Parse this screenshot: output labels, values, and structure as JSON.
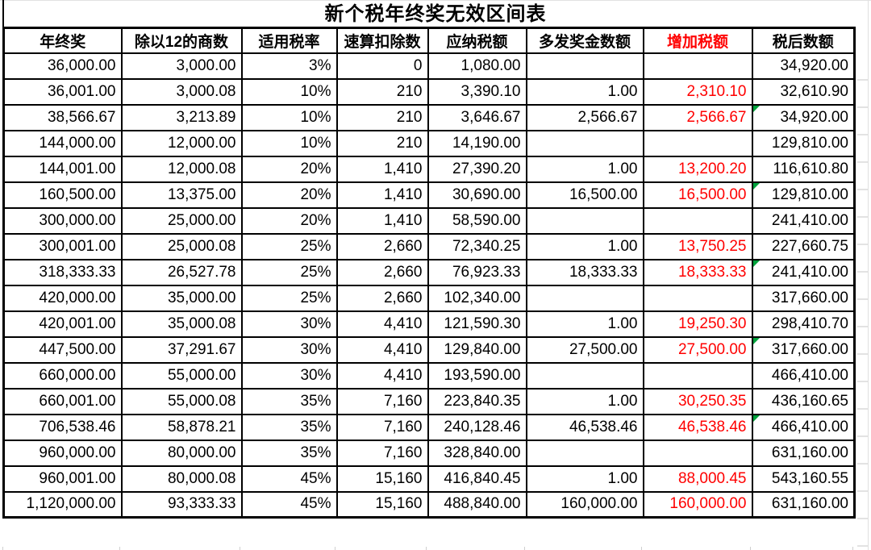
{
  "title": "新个税年终奖无效区间表",
  "colors": {
    "added_tax_red": "#FF0000",
    "comment_marker_green": "#00A33C",
    "table_border_black": "#000000"
  },
  "table": {
    "columns": [
      {
        "key": "bonus",
        "label": "年终奖"
      },
      {
        "key": "quotient",
        "label": "除以12的商数"
      },
      {
        "key": "rate",
        "label": "适用税率"
      },
      {
        "key": "deduction",
        "label": "速算扣除数"
      },
      {
        "key": "tax",
        "label": "应纳税额"
      },
      {
        "key": "extra",
        "label": "多发奖金数额"
      },
      {
        "key": "added",
        "label": "增加税额"
      },
      {
        "key": "after",
        "label": "税后数额"
      }
    ],
    "rows": [
      {
        "bonus": "36,000.00",
        "quotient": "3,000.00",
        "rate": "3%",
        "deduction": "0",
        "tax": "1,080.00",
        "extra": "",
        "added": "",
        "after": "34,920.00",
        "marker": false
      },
      {
        "bonus": "36,001.00",
        "quotient": "3,000.08",
        "rate": "10%",
        "deduction": "210",
        "tax": "3,390.10",
        "extra": "1.00",
        "added": "2,310.10",
        "after": "32,610.90",
        "marker": false
      },
      {
        "bonus": "38,566.67",
        "quotient": "3,213.89",
        "rate": "10%",
        "deduction": "210",
        "tax": "3,646.67",
        "extra": "2,566.67",
        "added": "2,566.67",
        "after": "34,920.00",
        "marker": true
      },
      {
        "bonus": "144,000.00",
        "quotient": "12,000.00",
        "rate": "10%",
        "deduction": "210",
        "tax": "14,190.00",
        "extra": "",
        "added": "",
        "after": "129,810.00",
        "marker": false
      },
      {
        "bonus": "144,001.00",
        "quotient": "12,000.08",
        "rate": "20%",
        "deduction": "1,410",
        "tax": "27,390.20",
        "extra": "1.00",
        "added": "13,200.20",
        "after": "116,610.80",
        "marker": false
      },
      {
        "bonus": "160,500.00",
        "quotient": "13,375.00",
        "rate": "20%",
        "deduction": "1,410",
        "tax": "30,690.00",
        "extra": "16,500.00",
        "added": "16,500.00",
        "after": "129,810.00",
        "marker": true
      },
      {
        "bonus": "300,000.00",
        "quotient": "25,000.00",
        "rate": "20%",
        "deduction": "1,410",
        "tax": "58,590.00",
        "extra": "",
        "added": "",
        "after": "241,410.00",
        "marker": false
      },
      {
        "bonus": "300,001.00",
        "quotient": "25,000.08",
        "rate": "25%",
        "deduction": "2,660",
        "tax": "72,340.25",
        "extra": "1.00",
        "added": "13,750.25",
        "after": "227,660.75",
        "marker": false
      },
      {
        "bonus": "318,333.33",
        "quotient": "26,527.78",
        "rate": "25%",
        "deduction": "2,660",
        "tax": "76,923.33",
        "extra": "18,333.33",
        "added": "18,333.33",
        "after": "241,410.00",
        "marker": true
      },
      {
        "bonus": "420,000.00",
        "quotient": "35,000.00",
        "rate": "25%",
        "deduction": "2,660",
        "tax": "102,340.00",
        "extra": "",
        "added": "",
        "after": "317,660.00",
        "marker": false
      },
      {
        "bonus": "420,001.00",
        "quotient": "35,000.08",
        "rate": "30%",
        "deduction": "4,410",
        "tax": "121,590.30",
        "extra": "1.00",
        "added": "19,250.30",
        "after": "298,410.70",
        "marker": false
      },
      {
        "bonus": "447,500.00",
        "quotient": "37,291.67",
        "rate": "30%",
        "deduction": "4,410",
        "tax": "129,840.00",
        "extra": "27,500.00",
        "added": "27,500.00",
        "after": "317,660.00",
        "marker": true
      },
      {
        "bonus": "660,000.00",
        "quotient": "55,000.00",
        "rate": "30%",
        "deduction": "4,410",
        "tax": "193,590.00",
        "extra": "",
        "added": "",
        "after": "466,410.00",
        "marker": false
      },
      {
        "bonus": "660,001.00",
        "quotient": "55,000.08",
        "rate": "35%",
        "deduction": "7,160",
        "tax": "223,840.35",
        "extra": "1.00",
        "added": "30,250.35",
        "after": "436,160.65",
        "marker": false
      },
      {
        "bonus": "706,538.46",
        "quotient": "58,878.21",
        "rate": "35%",
        "deduction": "7,160",
        "tax": "240,128.46",
        "extra": "46,538.46",
        "added": "46,538.46",
        "after": "466,410.00",
        "marker": true
      },
      {
        "bonus": "960,000.00",
        "quotient": "80,000.00",
        "rate": "35%",
        "deduction": "7,160",
        "tax": "328,840.00",
        "extra": "",
        "added": "",
        "after": "631,160.00",
        "marker": false
      },
      {
        "bonus": "960,001.00",
        "quotient": "80,000.08",
        "rate": "45%",
        "deduction": "15,160",
        "tax": "416,840.45",
        "extra": "1.00",
        "added": "88,000.45",
        "after": "543,160.55",
        "marker": false
      },
      {
        "bonus": "1,120,000.00",
        "quotient": "93,333.33",
        "rate": "45%",
        "deduction": "15,160",
        "tax": "488,840.00",
        "extra": "160,000.00",
        "added": "160,000.00",
        "after": "631,160.00",
        "marker": false
      }
    ]
  }
}
